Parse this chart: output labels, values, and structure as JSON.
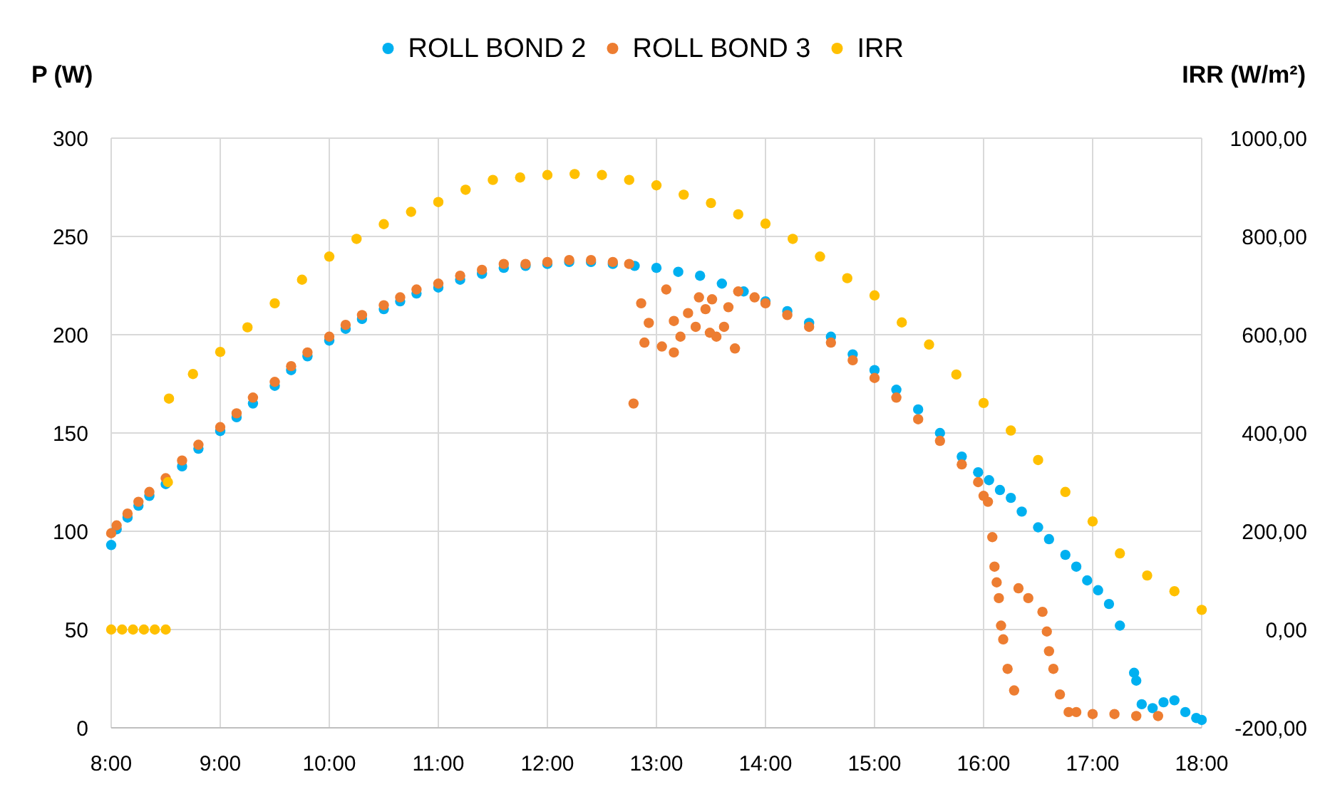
{
  "chart_data": {
    "type": "scatter",
    "ylabel": "P (W)",
    "y2label": "IRR (W/m²)",
    "legend": "top",
    "grid": true,
    "marker": "circle",
    "xlim": [
      8,
      18
    ],
    "xticks": [
      {
        "value": 8,
        "label": "8:00"
      },
      {
        "value": 9,
        "label": "9:00"
      },
      {
        "value": 10,
        "label": "10:00"
      },
      {
        "value": 11,
        "label": "11:00"
      },
      {
        "value": 12,
        "label": "12:00"
      },
      {
        "value": 13,
        "label": "13:00"
      },
      {
        "value": 14,
        "label": "14:00"
      },
      {
        "value": 15,
        "label": "15:00"
      },
      {
        "value": 16,
        "label": "16:00"
      },
      {
        "value": 17,
        "label": "17:00"
      },
      {
        "value": 18,
        "label": "18:00"
      }
    ],
    "ylim": [
      0,
      300
    ],
    "yticks": [
      0,
      50,
      100,
      150,
      200,
      250,
      300
    ],
    "y2lim": [
      -200,
      1000
    ],
    "y2ticks": [
      {
        "value": -200,
        "label": "-200,00"
      },
      {
        "value": 0,
        "label": "0,00"
      },
      {
        "value": 200,
        "label": "200,00"
      },
      {
        "value": 400,
        "label": "400,00"
      },
      {
        "value": 600,
        "label": "600,00"
      },
      {
        "value": 800,
        "label": "800,00"
      },
      {
        "value": 1000,
        "label": "1000,00"
      }
    ],
    "series": [
      {
        "name": "ROLL BOND 2",
        "color": "#00b0f0",
        "x": [
          8.0,
          8.05,
          8.15,
          8.25,
          8.35,
          8.5,
          8.65,
          8.8,
          9.0,
          9.15,
          9.3,
          9.5,
          9.65,
          9.8,
          10.0,
          10.15,
          10.3,
          10.5,
          10.65,
          10.8,
          11.0,
          11.2,
          11.4,
          11.6,
          11.8,
          12.0,
          12.2,
          12.4,
          12.6,
          12.8,
          13.0,
          13.2,
          13.4,
          13.6,
          13.8,
          14.0,
          14.2,
          14.4,
          14.6,
          14.8,
          15.0,
          15.2,
          15.4,
          15.6,
          15.8,
          15.95,
          16.05,
          16.15,
          16.25,
          16.35,
          16.5,
          16.6,
          16.75,
          16.85,
          16.95,
          17.05,
          17.15,
          17.25,
          17.38,
          17.4,
          17.45,
          17.55,
          17.65,
          17.75,
          17.85,
          17.95,
          18.0
        ],
        "values": [
          93,
          101,
          107,
          113,
          118,
          124,
          133,
          142,
          151,
          158,
          165,
          174,
          182,
          189,
          197,
          203,
          208,
          213,
          217,
          221,
          224,
          228,
          231,
          234,
          235,
          236,
          237,
          237,
          236,
          235,
          234,
          232,
          230,
          226,
          222,
          217,
          212,
          206,
          199,
          190,
          182,
          172,
          162,
          150,
          138,
          130,
          126,
          121,
          117,
          110,
          102,
          96,
          88,
          82,
          75,
          70,
          63,
          52,
          28,
          24,
          12,
          10,
          13,
          14,
          8,
          5,
          4
        ]
      },
      {
        "name": "ROLL BOND 3",
        "color": "#ed7d31",
        "x": [
          8.0,
          8.05,
          8.15,
          8.25,
          8.35,
          8.5,
          8.65,
          8.8,
          9.0,
          9.15,
          9.3,
          9.5,
          9.65,
          9.8,
          10.0,
          10.15,
          10.3,
          10.5,
          10.65,
          10.8,
          11.0,
          11.2,
          11.4,
          11.6,
          11.8,
          12.0,
          12.2,
          12.4,
          12.6,
          12.75,
          12.79,
          12.86,
          13.09,
          12.93,
          12.89,
          13.05,
          13.16,
          13.22,
          13.16,
          13.29,
          13.39,
          13.45,
          13.49,
          13.55,
          13.62,
          13.66,
          13.72,
          13.36,
          13.51,
          13.75,
          13.9,
          14.0,
          14.2,
          14.4,
          14.6,
          14.8,
          15.0,
          15.2,
          15.4,
          15.6,
          15.8,
          15.95,
          16.0,
          16.04,
          16.08,
          16.1,
          16.12,
          16.14,
          16.16,
          16.18,
          16.22,
          16.28,
          16.32,
          16.41,
          16.54,
          16.58,
          16.6,
          16.64,
          16.7,
          16.78,
          16.85,
          17.0,
          17.2,
          17.4,
          17.6
        ],
        "values": [
          99,
          103,
          109,
          115,
          120,
          127,
          136,
          144,
          153,
          160,
          168,
          176,
          184,
          191,
          199,
          205,
          210,
          215,
          219,
          223,
          226,
          230,
          233,
          236,
          236,
          237,
          238,
          238,
          237,
          236,
          165,
          216,
          223,
          206,
          196,
          194,
          191,
          199,
          207,
          211,
          219,
          213,
          201,
          199,
          204,
          214,
          193,
          204,
          218,
          222,
          219,
          216,
          210,
          204,
          196,
          187,
          178,
          168,
          157,
          146,
          134,
          125,
          118,
          115,
          97,
          82,
          74,
          66,
          52,
          45,
          30,
          19,
          71,
          66,
          59,
          49,
          39,
          30,
          17,
          8,
          8,
          7,
          7,
          6,
          6
        ]
      },
      {
        "name": "IRR",
        "color": "#ffc000",
        "axis": "y2",
        "x": [
          8.0,
          8.1,
          8.2,
          8.3,
          8.4,
          8.5,
          8.52,
          8.53,
          8.75,
          9.0,
          9.25,
          9.5,
          9.75,
          10.0,
          10.25,
          10.5,
          10.75,
          11.0,
          11.25,
          11.5,
          11.75,
          12.0,
          12.25,
          12.5,
          12.75,
          13.0,
          13.25,
          13.5,
          13.75,
          14.0,
          14.25,
          14.5,
          14.75,
          15.0,
          15.25,
          15.5,
          15.75,
          16.0,
          16.25,
          16.5,
          16.75,
          17.0,
          17.25,
          17.5,
          17.75,
          18.0
        ],
        "values": [
          0,
          0,
          0,
          0,
          0,
          0,
          300,
          470,
          520,
          565,
          615,
          664,
          712,
          759,
          795,
          825,
          850,
          870,
          895,
          915,
          920,
          925,
          927,
          925,
          915,
          904,
          885,
          868,
          845,
          826,
          795,
          759,
          715,
          680,
          625,
          580,
          519,
          461,
          405,
          345,
          280,
          220,
          155,
          110,
          78,
          40
        ]
      }
    ]
  }
}
